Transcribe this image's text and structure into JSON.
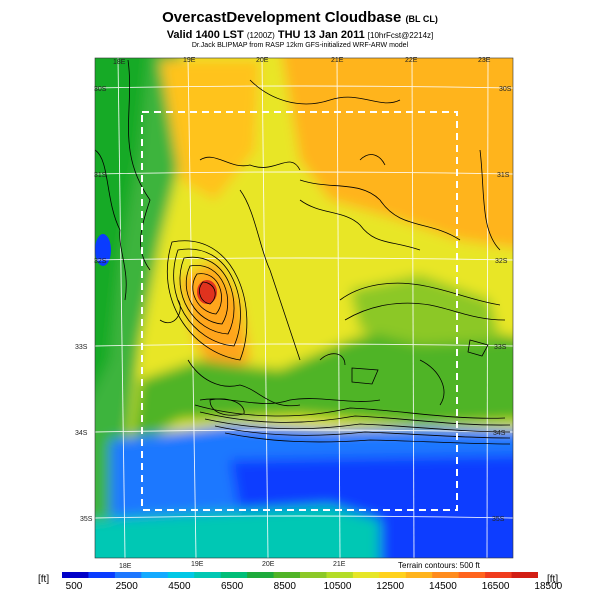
{
  "header": {
    "title": "OvercastDevelopment Cloudbase",
    "title_suffix": "(BL CL)",
    "valid_line": "Valid 1400 LST",
    "valid_utc": "(1200Z)",
    "valid_date": "THU 13 Jan 2011",
    "forecast_tag": "[10hrFcst@2214z]",
    "credit": "Dr.Jack BLIPMAP from RASP 12km GFS-initialized WRF-ARW model"
  },
  "map": {
    "lon_labels_top": [
      "18E",
      "19E",
      "20E",
      "21E",
      "22E",
      "23E"
    ],
    "lon_labels_bottom": [
      "18E",
      "19E",
      "20E",
      "21E"
    ],
    "lat_labels_left": [
      "30S",
      "31S",
      "32S",
      "33S",
      "34S",
      "35S"
    ],
    "lat_labels_right": [
      "30S",
      "31S",
      "32S",
      "33S",
      "34S",
      "35S"
    ],
    "terrain_note": "Terrain contours: 500 ft"
  },
  "legend": {
    "unit_left": "[ft]",
    "unit_right": "[ft]",
    "ticks": [
      "500",
      "2500",
      "4500",
      "6500",
      "8500",
      "10500",
      "12500",
      "14500",
      "16500",
      "18500"
    ],
    "colors": [
      "#0000c8",
      "#0a3cff",
      "#1e78ff",
      "#14aaff",
      "#00c8e6",
      "#00c8b4",
      "#00be78",
      "#1eaa3c",
      "#50b428",
      "#8cc828",
      "#b4dc28",
      "#e6e628",
      "#ffd21e",
      "#ffb41e",
      "#ff8c1e",
      "#ff641e",
      "#f03c1e",
      "#d21e14"
    ]
  }
}
